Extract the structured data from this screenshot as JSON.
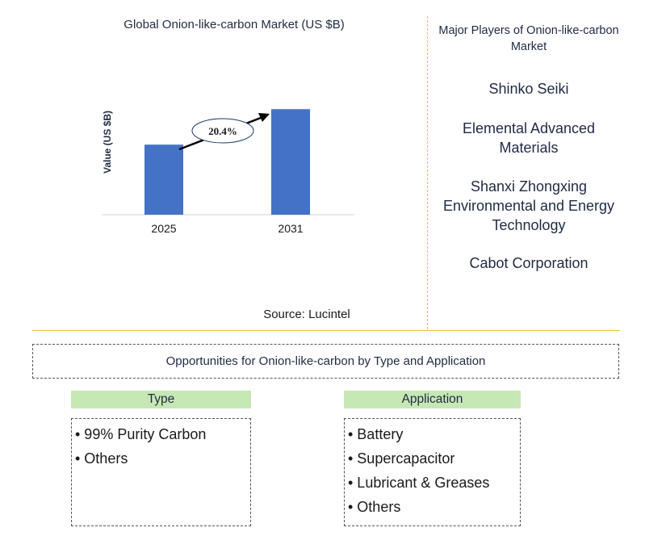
{
  "chart_data": {
    "type": "bar",
    "title": "Global Onion-like-carbon Market (US $B)",
    "ylabel": "Value (US $B)",
    "xlabel": "",
    "categories": [
      "2025",
      "2031"
    ],
    "values": [
      0.83,
      1.25
    ],
    "ylim": [
      0,
      1.3
    ],
    "annotation": "20.4%",
    "bar_color": "#4472c4",
    "grid": false
  },
  "source": "Source: Lucintel",
  "players": {
    "heading": "Major Players of Onion-like-carbon Market",
    "items": [
      "Shinko Seiki",
      "Elemental Advanced Materials",
      "Shanxi Zhongxing Environmental and Energy Technology",
      "Cabot Corporation"
    ]
  },
  "opportunities": {
    "title": "Opportunities for Onion-like-carbon by Type and Application",
    "type": {
      "heading": "Type",
      "items": [
        "• 99% Purity Carbon",
        "• Others"
      ]
    },
    "application": {
      "heading": "Application",
      "items": [
        "• Battery",
        "• Supercapacitor",
        "• Lubricant & Greases",
        "• Others"
      ]
    }
  }
}
